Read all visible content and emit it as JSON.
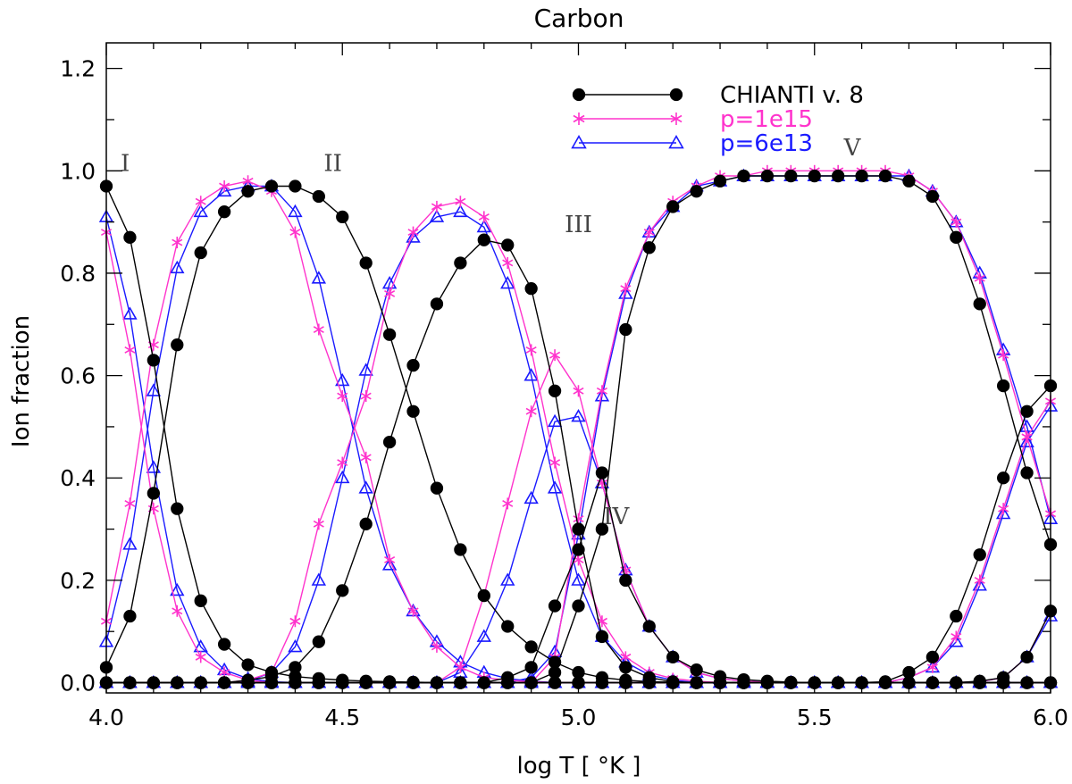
{
  "chart_data": {
    "type": "line",
    "title": "Carbon",
    "xlabel": "log T [ °K ]",
    "ylabel": "Ion fraction",
    "xlim": [
      4.0,
      6.0
    ],
    "ylim": [
      -0.02,
      1.25
    ],
    "xticks": [
      4.0,
      4.5,
      5.0,
      5.5,
      6.0
    ],
    "xtick_labels": [
      "4.0",
      "4.5",
      "5.0",
      "5.5",
      "6.0"
    ],
    "yticks": [
      0.0,
      0.2,
      0.4,
      0.6,
      0.8,
      1.0,
      1.2
    ],
    "ytick_labels": [
      "0.0",
      "0.2",
      "0.4",
      "0.6",
      "0.8",
      "1.0",
      "1.2"
    ],
    "grid": false,
    "legend_position": "top-right",
    "x": [
      4.0,
      4.05,
      4.1,
      4.15,
      4.2,
      4.25,
      4.3,
      4.35,
      4.4,
      4.45,
      4.5,
      4.55,
      4.6,
      4.65,
      4.7,
      4.75,
      4.8,
      4.85,
      4.9,
      4.95,
      5.0,
      5.05,
      5.1,
      5.15,
      5.2,
      5.25,
      5.3,
      5.35,
      5.4,
      5.45,
      5.5,
      5.55,
      5.6,
      5.65,
      5.7,
      5.75,
      5.8,
      5.85,
      5.9,
      5.95,
      6.0
    ],
    "ion_labels": [
      {
        "text": "I",
        "x": 4.04,
        "y": 1.0
      },
      {
        "text": "II",
        "x": 4.48,
        "y": 1.0
      },
      {
        "text": "III",
        "x": 5.0,
        "y": 0.88
      },
      {
        "text": "IV",
        "x": 5.08,
        "y": 0.31
      },
      {
        "text": "V",
        "x": 5.58,
        "y": 1.03
      }
    ],
    "series": [
      {
        "name": "CHIANTI v. 8",
        "color": "#000000",
        "marker": "filled-circle",
        "ions": {
          "I": [
            0.97,
            0.87,
            0.63,
            0.34,
            0.16,
            0.075,
            0.035,
            0.02,
            0.012,
            0.008,
            0.005,
            0.003,
            0.002,
            0.001,
            0.0,
            0.0,
            0.0,
            0.0,
            0.0,
            0.0,
            0.0,
            0.0,
            0.0,
            0.0,
            0.0,
            0.0,
            0.0,
            0.0,
            0.0,
            0.0,
            0.0,
            0.0,
            0.0,
            0.0,
            0.0,
            0.0,
            0.0,
            0.0,
            0.0,
            0.0,
            0.0
          ],
          "II": [
            0.03,
            0.13,
            0.37,
            0.66,
            0.84,
            0.92,
            0.96,
            0.97,
            0.97,
            0.95,
            0.91,
            0.82,
            0.68,
            0.53,
            0.38,
            0.26,
            0.17,
            0.11,
            0.07,
            0.04,
            0.02,
            0.01,
            0.005,
            0.002,
            0.001,
            0.0,
            0.0,
            0.0,
            0.0,
            0.0,
            0.0,
            0.0,
            0.0,
            0.0,
            0.0,
            0.0,
            0.0,
            0.0,
            0.0,
            0.0,
            0.0
          ],
          "III": [
            0.0,
            0.0,
            0.0,
            0.0,
            0.0,
            0.0,
            0.005,
            0.012,
            0.03,
            0.08,
            0.18,
            0.31,
            0.47,
            0.62,
            0.74,
            0.82,
            0.865,
            0.855,
            0.77,
            0.57,
            0.3,
            0.09,
            0.03,
            0.01,
            0.002,
            0.0,
            0.0,
            0.0,
            0.0,
            0.0,
            0.0,
            0.0,
            0.0,
            0.0,
            0.0,
            0.0,
            0.0,
            0.0,
            0.0,
            0.0,
            0.0
          ],
          "IV": [
            0.0,
            0.0,
            0.0,
            0.0,
            0.0,
            0.0,
            0.0,
            0.0,
            0.0,
            0.0,
            0.0,
            0.0,
            0.0,
            0.0,
            0.0,
            0.0,
            0.0,
            0.01,
            0.03,
            0.15,
            0.26,
            0.41,
            0.2,
            0.11,
            0.05,
            0.025,
            0.012,
            0.006,
            0.003,
            0.001,
            0.0,
            0.0,
            0.0,
            0.0,
            0.0,
            0.0,
            0.0,
            0.0,
            0.0,
            0.0,
            0.0
          ],
          "V": [
            0.0,
            0.0,
            0.0,
            0.0,
            0.0,
            0.0,
            0.0,
            0.0,
            0.0,
            0.0,
            0.0,
            0.0,
            0.0,
            0.0,
            0.0,
            0.0,
            0.0,
            0.0,
            0.0,
            0.02,
            0.15,
            0.3,
            0.69,
            0.85,
            0.93,
            0.96,
            0.98,
            0.99,
            0.99,
            0.99,
            0.99,
            0.99,
            0.99,
            0.99,
            0.98,
            0.95,
            0.87,
            0.74,
            0.58,
            0.41,
            0.27
          ],
          "VI": [
            0.0,
            0.0,
            0.0,
            0.0,
            0.0,
            0.0,
            0.0,
            0.0,
            0.0,
            0.0,
            0.0,
            0.0,
            0.0,
            0.0,
            0.0,
            0.0,
            0.0,
            0.0,
            0.0,
            0.0,
            0.0,
            0.0,
            0.0,
            0.0,
            0.0,
            0.0,
            0.0,
            0.0,
            0.0,
            0.0,
            0.0,
            0.0,
            0.0,
            0.002,
            0.02,
            0.05,
            0.13,
            0.25,
            0.4,
            0.53,
            0.58
          ],
          "VII": [
            0.0,
            0.0,
            0.0,
            0.0,
            0.0,
            0.0,
            0.0,
            0.0,
            0.0,
            0.0,
            0.0,
            0.0,
            0.0,
            0.0,
            0.0,
            0.0,
            0.0,
            0.0,
            0.0,
            0.0,
            0.0,
            0.0,
            0.0,
            0.0,
            0.0,
            0.0,
            0.0,
            0.0,
            0.0,
            0.0,
            0.0,
            0.0,
            0.0,
            0.0,
            0.0,
            0.0,
            0.0,
            0.003,
            0.01,
            0.05,
            0.14
          ]
        }
      },
      {
        "name": "p=1e15",
        "color": "#ff33cc",
        "marker": "asterisk",
        "ions": {
          "I": [
            0.88,
            0.65,
            0.34,
            0.14,
            0.05,
            0.02,
            0.005,
            0.0,
            0.0,
            0.0,
            0.0,
            0.0,
            0.0,
            0.0,
            0.0,
            0.0,
            0.0,
            0.0,
            0.0,
            0.0,
            0.0,
            0.0,
            0.0,
            0.0,
            0.0,
            0.0,
            0.0,
            0.0,
            0.0,
            0.0,
            0.0,
            0.0,
            0.0,
            0.0,
            0.0,
            0.0,
            0.0,
            0.0,
            0.0,
            0.0,
            0.0
          ],
          "II": [
            0.12,
            0.35,
            0.66,
            0.86,
            0.94,
            0.97,
            0.98,
            0.96,
            0.88,
            0.69,
            0.56,
            0.44,
            0.24,
            0.14,
            0.07,
            0.03,
            0.01,
            0.005,
            0.002,
            0.0,
            0.0,
            0.0,
            0.0,
            0.0,
            0.0,
            0.0,
            0.0,
            0.0,
            0.0,
            0.0,
            0.0,
            0.0,
            0.0,
            0.0,
            0.0,
            0.0,
            0.0,
            0.0,
            0.0,
            0.0,
            0.0
          ],
          "III": [
            0.0,
            0.0,
            0.0,
            0.0,
            0.0,
            0.0,
            0.005,
            0.02,
            0.12,
            0.31,
            0.43,
            0.56,
            0.76,
            0.88,
            0.93,
            0.94,
            0.91,
            0.82,
            0.65,
            0.43,
            0.24,
            0.12,
            0.05,
            0.02,
            0.008,
            0.003,
            0.0,
            0.0,
            0.0,
            0.0,
            0.0,
            0.0,
            0.0,
            0.0,
            0.0,
            0.0,
            0.0,
            0.0,
            0.0,
            0.0,
            0.0
          ],
          "IV": [
            0.0,
            0.0,
            0.0,
            0.0,
            0.0,
            0.0,
            0.0,
            0.0,
            0.0,
            0.0,
            0.0,
            0.0,
            0.0,
            0.0,
            0.0,
            0.03,
            0.17,
            0.35,
            0.53,
            0.64,
            0.57,
            0.39,
            0.22,
            0.11,
            0.05,
            0.02,
            0.008,
            0.003,
            0.001,
            0.0,
            0.0,
            0.0,
            0.0,
            0.0,
            0.0,
            0.0,
            0.0,
            0.0,
            0.0,
            0.0,
            0.0
          ],
          "V": [
            0.0,
            0.0,
            0.0,
            0.0,
            0.0,
            0.0,
            0.0,
            0.0,
            0.0,
            0.0,
            0.0,
            0.0,
            0.0,
            0.0,
            0.0,
            0.0,
            0.0,
            0.0,
            0.0,
            0.05,
            0.32,
            0.57,
            0.77,
            0.88,
            0.94,
            0.97,
            0.99,
            0.99,
            1.0,
            1.0,
            1.0,
            1.0,
            1.0,
            1.0,
            0.99,
            0.96,
            0.9,
            0.79,
            0.64,
            0.48,
            0.33
          ],
          "VI": [
            0.0,
            0.0,
            0.0,
            0.0,
            0.0,
            0.0,
            0.0,
            0.0,
            0.0,
            0.0,
            0.0,
            0.0,
            0.0,
            0.0,
            0.0,
            0.0,
            0.0,
            0.0,
            0.0,
            0.0,
            0.0,
            0.0,
            0.0,
            0.0,
            0.0,
            0.0,
            0.0,
            0.0,
            0.0,
            0.0,
            0.0,
            0.0,
            0.0,
            0.0,
            0.01,
            0.03,
            0.09,
            0.2,
            0.34,
            0.48,
            0.55
          ],
          "VII": [
            0.0,
            0.0,
            0.0,
            0.0,
            0.0,
            0.0,
            0.0,
            0.0,
            0.0,
            0.0,
            0.0,
            0.0,
            0.0,
            0.0,
            0.0,
            0.0,
            0.0,
            0.0,
            0.0,
            0.0,
            0.0,
            0.0,
            0.0,
            0.0,
            0.0,
            0.0,
            0.0,
            0.0,
            0.0,
            0.0,
            0.0,
            0.0,
            0.0,
            0.0,
            0.0,
            0.0,
            0.0,
            0.002,
            0.01,
            0.05,
            0.14
          ]
        }
      },
      {
        "name": "p=6e13",
        "color": "#1a1aff",
        "marker": "open-triangle",
        "ions": {
          "I": [
            0.91,
            0.72,
            0.42,
            0.18,
            0.07,
            0.025,
            0.008,
            0.002,
            0.0,
            0.0,
            0.0,
            0.0,
            0.0,
            0.0,
            0.0,
            0.0,
            0.0,
            0.0,
            0.0,
            0.0,
            0.0,
            0.0,
            0.0,
            0.0,
            0.0,
            0.0,
            0.0,
            0.0,
            0.0,
            0.0,
            0.0,
            0.0,
            0.0,
            0.0,
            0.0,
            0.0,
            0.0,
            0.0,
            0.0,
            0.0,
            0.0
          ],
          "II": [
            0.08,
            0.27,
            0.57,
            0.81,
            0.92,
            0.96,
            0.97,
            0.97,
            0.92,
            0.79,
            0.59,
            0.38,
            0.23,
            0.14,
            0.08,
            0.04,
            0.02,
            0.008,
            0.003,
            0.0,
            0.0,
            0.0,
            0.0,
            0.0,
            0.0,
            0.0,
            0.0,
            0.0,
            0.0,
            0.0,
            0.0,
            0.0,
            0.0,
            0.0,
            0.0,
            0.0,
            0.0,
            0.0,
            0.0,
            0.0,
            0.0
          ],
          "III": [
            0.0,
            0.0,
            0.0,
            0.0,
            0.0,
            0.0,
            0.003,
            0.02,
            0.07,
            0.2,
            0.4,
            0.61,
            0.78,
            0.87,
            0.91,
            0.92,
            0.89,
            0.78,
            0.6,
            0.38,
            0.2,
            0.09,
            0.04,
            0.015,
            0.005,
            0.0,
            0.0,
            0.0,
            0.0,
            0.0,
            0.0,
            0.0,
            0.0,
            0.0,
            0.0,
            0.0,
            0.0,
            0.0,
            0.0,
            0.0,
            0.0
          ],
          "IV": [
            0.0,
            0.0,
            0.0,
            0.0,
            0.0,
            0.0,
            0.0,
            0.0,
            0.0,
            0.0,
            0.0,
            0.0,
            0.0,
            0.0,
            0.0,
            0.02,
            0.09,
            0.2,
            0.36,
            0.51,
            0.52,
            0.39,
            0.22,
            0.11,
            0.05,
            0.02,
            0.008,
            0.003,
            0.001,
            0.0,
            0.0,
            0.0,
            0.0,
            0.0,
            0.0,
            0.0,
            0.0,
            0.0,
            0.0,
            0.0,
            0.0
          ],
          "V": [
            0.0,
            0.0,
            0.0,
            0.0,
            0.0,
            0.0,
            0.0,
            0.0,
            0.0,
            0.0,
            0.0,
            0.0,
            0.0,
            0.0,
            0.0,
            0.0,
            0.0,
            0.0,
            0.01,
            0.06,
            0.29,
            0.56,
            0.76,
            0.88,
            0.93,
            0.97,
            0.98,
            0.99,
            0.99,
            0.99,
            0.99,
            0.99,
            0.99,
            0.99,
            0.99,
            0.96,
            0.9,
            0.8,
            0.65,
            0.5,
            0.32
          ],
          "VI": [
            0.0,
            0.0,
            0.0,
            0.0,
            0.0,
            0.0,
            0.0,
            0.0,
            0.0,
            0.0,
            0.0,
            0.0,
            0.0,
            0.0,
            0.0,
            0.0,
            0.0,
            0.0,
            0.0,
            0.0,
            0.0,
            0.0,
            0.0,
            0.0,
            0.0,
            0.0,
            0.0,
            0.0,
            0.0,
            0.0,
            0.0,
            0.0,
            0.0,
            0.0,
            0.01,
            0.03,
            0.08,
            0.19,
            0.33,
            0.47,
            0.54
          ],
          "VII": [
            0.0,
            0.0,
            0.0,
            0.0,
            0.0,
            0.0,
            0.0,
            0.0,
            0.0,
            0.0,
            0.0,
            0.0,
            0.0,
            0.0,
            0.0,
            0.0,
            0.0,
            0.0,
            0.0,
            0.0,
            0.0,
            0.0,
            0.0,
            0.0,
            0.0,
            0.0,
            0.0,
            0.0,
            0.0,
            0.0,
            0.0,
            0.0,
            0.0,
            0.0,
            0.0,
            0.0,
            0.0,
            0.002,
            0.01,
            0.05,
            0.13
          ]
        }
      }
    ]
  }
}
